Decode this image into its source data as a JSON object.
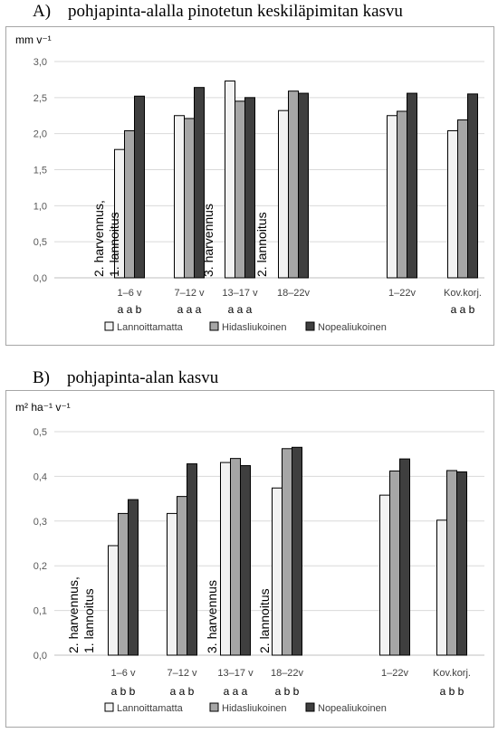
{
  "colors": {
    "Lannoittamatta": "#f2f2f2",
    "Hidasliukoinen": "#a6a6a6",
    "Nopealiukoinen": "#3f3f3f",
    "grid": "#d9d9d9",
    "bar_stroke": "#000000"
  },
  "chart_data": [
    {
      "type": "bar",
      "panel_title": "A) pohjapinta-alalla pinotetun keskiläpimitan kasvu",
      "ylabel": "mm v⁻¹",
      "ylim": [
        0,
        3.0
      ],
      "ytick_step": 0.5,
      "ytick_decimals": 1,
      "grid": true,
      "legend_position": "bottom",
      "categories": [
        "1–6 v",
        "7–12 v",
        "13–17 v",
        "18–22v",
        "1–22v",
        "Kov.korj."
      ],
      "series": [
        {
          "name": "Lannoittamatta",
          "values": [
            1.78,
            2.25,
            2.73,
            2.32,
            2.25,
            2.04
          ]
        },
        {
          "name": "Hidasliukoinen",
          "values": [
            2.04,
            2.21,
            2.45,
            2.59,
            2.31,
            2.19
          ]
        },
        {
          "name": "Nopealiukoinen",
          "values": [
            2.52,
            2.64,
            2.5,
            2.56,
            2.56,
            2.55
          ]
        }
      ],
      "significance": [
        "a a b",
        "a a a",
        "a a a",
        "",
        "",
        "a a b"
      ],
      "annotations": [
        {
          "lines": [
            "2. harvennus,",
            "1. lannoitus"
          ],
          "near_category": "1–6 v"
        },
        {
          "lines": [
            "3. harvennus"
          ],
          "near_category": "13–17 v"
        },
        {
          "lines": [
            "2. lannoitus"
          ],
          "near_category": "18–22v"
        }
      ]
    },
    {
      "type": "bar",
      "panel_title": "B) pohjapinta-alan kasvu",
      "ylabel": "m² ha⁻¹ v⁻¹",
      "ylim": [
        0,
        0.5
      ],
      "ytick_step": 0.1,
      "ytick_decimals": 1,
      "grid": true,
      "legend_position": "bottom",
      "categories": [
        "1–6 v",
        "7–12 v",
        "13–17 v",
        "18–22v",
        "1–22v",
        "Kov.korj."
      ],
      "series": [
        {
          "name": "Lannoittamatta",
          "values": [
            0.245,
            0.317,
            0.431,
            0.374,
            0.358,
            0.302
          ]
        },
        {
          "name": "Hidasliukoinen",
          "values": [
            0.317,
            0.355,
            0.44,
            0.462,
            0.412,
            0.413
          ]
        },
        {
          "name": "Nopealiukoinen",
          "values": [
            0.348,
            0.428,
            0.424,
            0.465,
            0.439,
            0.41
          ]
        }
      ],
      "significance": [
        "a b b",
        "a a b",
        "a a a",
        "a b b",
        "",
        "a b b"
      ],
      "annotations": [
        {
          "lines": [
            "2. harvennus,",
            "1. lannoitus"
          ],
          "near_category": "1–6 v"
        },
        {
          "lines": [
            "3. harvennus"
          ],
          "near_category": "13–17 v"
        },
        {
          "lines": [
            "2. lannoitus"
          ],
          "near_category": "18–22v"
        }
      ]
    }
  ]
}
